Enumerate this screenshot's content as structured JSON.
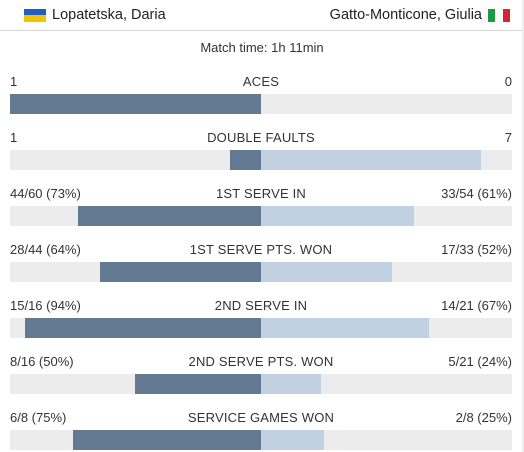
{
  "players": {
    "left": {
      "name": "Lopatetska, Daria",
      "flag": "ukraine-flag-icon"
    },
    "right": {
      "name": "Gatto-Monticone, Giulia",
      "flag": "italy-flag-icon"
    }
  },
  "match_time": "Match time: 1h 11min",
  "colors": {
    "left_bar": "#647a92",
    "right_bar": "#c2d1e2",
    "track": "#ececec"
  },
  "stats": [
    {
      "label": "ACES",
      "left": "1",
      "right": "0",
      "left_fill": 1.0,
      "right_fill": 0.0
    },
    {
      "label": "DOUBLE FAULTS",
      "left": "1",
      "right": "7",
      "left_fill": 0.125,
      "right_fill": 0.875
    },
    {
      "label": "1ST SERVE IN",
      "left": "44/60 (73%)",
      "right": "33/54 (61%)",
      "left_fill": 0.73,
      "right_fill": 0.61
    },
    {
      "label": "1ST SERVE PTS. WON",
      "left": "28/44 (64%)",
      "right": "17/33 (52%)",
      "left_fill": 0.64,
      "right_fill": 0.52
    },
    {
      "label": "2ND SERVE IN",
      "left": "15/16 (94%)",
      "right": "14/21 (67%)",
      "left_fill": 0.94,
      "right_fill": 0.67
    },
    {
      "label": "2ND SERVE PTS. WON",
      "left": "8/16 (50%)",
      "right": "5/21 (24%)",
      "left_fill": 0.5,
      "right_fill": 0.24
    },
    {
      "label": "SERVICE GAMES WON",
      "left": "6/8 (75%)",
      "right": "2/8 (25%)",
      "left_fill": 0.75,
      "right_fill": 0.25
    }
  ]
}
